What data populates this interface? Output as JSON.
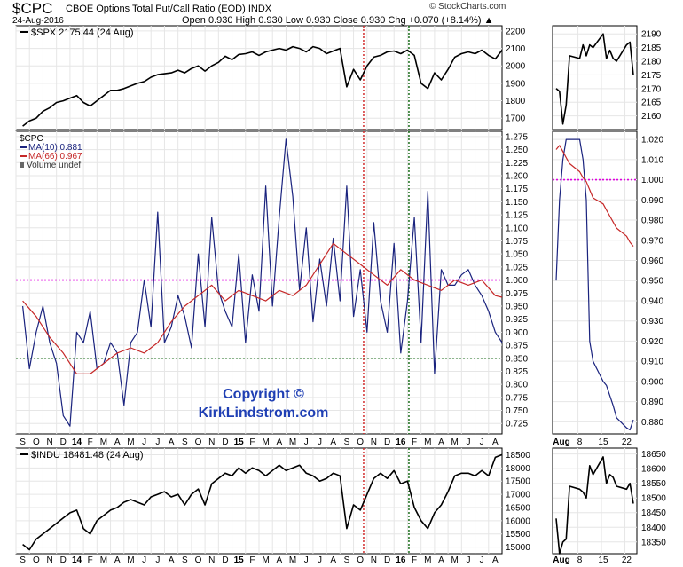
{
  "header": {
    "symbol": "$CPC",
    "subtitle": "CBOE Options Total Put/Call Ratio (EOD)  INDX",
    "date": "24-Aug-2016",
    "ohlc": "Open 0.930  High 0.930  Low 0.930  Close 0.930  Chg +0.070 (+8.14%) ▲",
    "brand": "© StockCharts.com"
  },
  "copyright": {
    "line1": "Copyright ©",
    "line2": "KirkLindstrom.com"
  },
  "colors": {
    "price": "#000000",
    "ma10": "#1a237e",
    "ma66": "#c62828",
    "ref_line": "#e000e0",
    "support_line": "#1b6e1b",
    "oct_marker": "#d32f2f",
    "feb_marker": "#1b6e1b",
    "copyright": "#1f3fb4"
  },
  "month_labels": [
    "S",
    "O",
    "N",
    "D",
    "14",
    "F",
    "M",
    "A",
    "M",
    "J",
    "J",
    "A",
    "S",
    "O",
    "N",
    "D",
    "15",
    "F",
    "M",
    "A",
    "M",
    "J",
    "J",
    "A",
    "S",
    "O",
    "N",
    "D",
    "16",
    "F",
    "M",
    "A",
    "M",
    "J",
    "J",
    "A"
  ],
  "zoom_labels": [
    "Aug",
    "8",
    "15",
    "22"
  ],
  "chart_data": [
    {
      "id": "spx",
      "type": "line",
      "legend": "$SPX 2175.44 (24 Aug)",
      "yticks": [
        1700,
        1800,
        1900,
        2000,
        2100,
        2200
      ],
      "ylim": [
        1635,
        2230
      ],
      "x_months": [
        0,
        0.5,
        1,
        1.5,
        2,
        2.5,
        3,
        3.5,
        4,
        4.5,
        5,
        5.5,
        6,
        6.5,
        7,
        7.5,
        8,
        8.5,
        9,
        9.5,
        10,
        10.5,
        11,
        11.5,
        12,
        12.5,
        13,
        13.5,
        14,
        14.5,
        15,
        15.5,
        16,
        16.5,
        17,
        17.5,
        18,
        18.5,
        19,
        19.5,
        20,
        20.5,
        21,
        21.5,
        22,
        22.5,
        23,
        23.5,
        24,
        24.5,
        25,
        25.5,
        26,
        26.5,
        27,
        27.5,
        28,
        28.5,
        29,
        29.5,
        30,
        30.5,
        31,
        31.5,
        32,
        32.5,
        33,
        33.5,
        34,
        34.5,
        35,
        35.5
      ],
      "values": [
        1655,
        1685,
        1700,
        1740,
        1760,
        1790,
        1800,
        1815,
        1830,
        1790,
        1770,
        1800,
        1830,
        1860,
        1860,
        1870,
        1885,
        1900,
        1910,
        1935,
        1950,
        1955,
        1960,
        1975,
        1960,
        1985,
        2000,
        1970,
        2000,
        2020,
        2055,
        2035,
        2065,
        2070,
        2080,
        2060,
        2080,
        2090,
        2100,
        2090,
        2110,
        2100,
        2080,
        2110,
        2100,
        2070,
        2085,
        2100,
        1880,
        1980,
        1920,
        2000,
        2050,
        2060,
        2080,
        2085,
        2070,
        2090,
        2060,
        1900,
        1870,
        1960,
        1920,
        1980,
        2050,
        2070,
        2080,
        2070,
        2090,
        2060,
        2040,
        2090
      ]
    },
    {
      "id": "spx_zoom",
      "type": "line",
      "x_days": [
        1,
        2,
        3,
        4,
        5,
        8,
        9,
        10,
        11,
        12,
        15,
        16,
        17,
        18,
        19,
        22,
        23,
        24
      ],
      "yticks": [
        2160,
        2165,
        2170,
        2175,
        2180,
        2185,
        2190
      ],
      "ylim": [
        2155,
        2193
      ],
      "values": [
        2170,
        2169,
        2157,
        2164,
        2182,
        2181,
        2186,
        2182,
        2186,
        2185,
        2190,
        2181,
        2184,
        2181,
        2180,
        2186,
        2187,
        2175
      ]
    },
    {
      "id": "cpc",
      "type": "line",
      "title": "$CPC",
      "yticks": [
        0.725,
        0.75,
        0.775,
        0.8,
        0.825,
        0.85,
        0.875,
        0.9,
        0.925,
        0.95,
        0.975,
        1.0,
        1.025,
        1.05,
        1.075,
        1.1,
        1.125,
        1.15,
        1.175,
        1.2,
        1.225,
        1.25,
        1.275
      ],
      "ylim": [
        0.705,
        1.285
      ],
      "reference_lines": [
        1.0,
        0.85
      ],
      "series": [
        {
          "name": "MA(10) 0.881",
          "x_months": [
            0,
            0.5,
            1,
            1.5,
            2,
            2.5,
            3,
            3.5,
            4,
            4.5,
            5,
            5.5,
            6,
            6.5,
            7,
            7.5,
            8,
            8.5,
            9,
            9.5,
            10,
            10.5,
            11,
            11.5,
            12,
            12.5,
            13,
            13.5,
            14,
            14.5,
            15,
            15.5,
            16,
            16.5,
            17,
            17.5,
            18,
            18.5,
            19,
            19.5,
            20,
            20.5,
            21,
            21.5,
            22,
            22.5,
            23,
            23.5,
            24,
            24.5,
            25,
            25.5,
            26,
            26.5,
            27,
            27.5,
            28,
            28.5,
            29,
            29.5,
            30,
            30.5,
            31,
            31.5,
            32,
            32.5,
            33,
            33.5,
            34,
            34.5,
            35,
            35.5
          ],
          "values": [
            0.95,
            0.83,
            0.9,
            0.95,
            0.88,
            0.84,
            0.74,
            0.72,
            0.9,
            0.88,
            0.94,
            0.83,
            0.84,
            0.88,
            0.86,
            0.76,
            0.88,
            0.9,
            1.0,
            0.91,
            1.13,
            0.88,
            0.91,
            0.97,
            0.93,
            0.87,
            1.05,
            0.91,
            1.12,
            0.98,
            0.94,
            0.91,
            1.05,
            0.88,
            1.01,
            0.94,
            1.18,
            0.95,
            1.12,
            1.27,
            1.16,
            0.98,
            1.1,
            0.92,
            1.04,
            0.95,
            1.08,
            0.96,
            1.18,
            0.93,
            1.02,
            0.9,
            1.11,
            0.96,
            0.9,
            1.07,
            0.86,
            0.96,
            1.12,
            0.88,
            1.17,
            0.82,
            1.02,
            0.99,
            0.99,
            1.01,
            1.02,
            0.99,
            0.97,
            0.94,
            0.9,
            0.88
          ]
        },
        {
          "name": "MA(66) 0.967",
          "x_months": [
            0,
            1,
            2,
            3,
            4,
            5,
            6,
            7,
            8,
            9,
            10,
            11,
            12,
            13,
            14,
            15,
            16,
            17,
            18,
            19,
            20,
            21,
            22,
            23,
            24,
            25,
            26,
            27,
            28,
            29,
            30,
            31,
            32,
            33,
            34,
            35,
            35.5
          ],
          "values": [
            0.96,
            0.93,
            0.89,
            0.86,
            0.82,
            0.82,
            0.84,
            0.86,
            0.87,
            0.86,
            0.88,
            0.92,
            0.95,
            0.97,
            0.99,
            0.96,
            0.98,
            0.97,
            0.96,
            0.98,
            0.97,
            0.99,
            1.03,
            1.07,
            1.05,
            1.03,
            1.01,
            0.99,
            1.02,
            1.0,
            0.99,
            0.98,
            1.0,
            0.99,
            1.0,
            0.97,
            0.967
          ]
        }
      ],
      "volume": "Volume undef"
    },
    {
      "id": "cpc_zoom",
      "type": "line",
      "x_days": [
        1,
        2,
        3,
        4,
        5,
        8,
        9,
        10,
        11,
        12,
        15,
        16,
        17,
        18,
        19,
        22,
        23,
        24
      ],
      "yticks": [
        0.88,
        0.89,
        0.9,
        0.91,
        0.92,
        0.93,
        0.94,
        0.95,
        0.96,
        0.97,
        0.98,
        0.99,
        1.0,
        1.01,
        1.02
      ],
      "ylim": [
        0.874,
        1.024
      ],
      "reference_lines": [
        1.0
      ],
      "series": [
        {
          "name": "MA(10)",
          "values": [
            0.95,
            0.99,
            1.01,
            1.02,
            1.02,
            1.02,
            1.01,
            0.99,
            0.92,
            0.91,
            0.9,
            0.898,
            0.893,
            0.888,
            0.882,
            0.877,
            0.876,
            0.881
          ]
        },
        {
          "name": "MA(66)",
          "values": [
            1.015,
            1.017,
            1.014,
            1.011,
            1.008,
            1.004,
            1.001,
            0.999,
            0.995,
            0.991,
            0.988,
            0.985,
            0.982,
            0.979,
            0.976,
            0.972,
            0.969,
            0.967
          ]
        }
      ]
    },
    {
      "id": "indu",
      "type": "line",
      "legend": "$INDU 18481.48 (24 Aug)",
      "yticks": [
        15000,
        15500,
        16000,
        16500,
        17000,
        17500,
        18000,
        18500
      ],
      "ylim": [
        14750,
        18750
      ],
      "x_months": [
        0,
        0.5,
        1,
        1.5,
        2,
        2.5,
        3,
        3.5,
        4,
        4.5,
        5,
        5.5,
        6,
        6.5,
        7,
        7.5,
        8,
        8.5,
        9,
        9.5,
        10,
        10.5,
        11,
        11.5,
        12,
        12.5,
        13,
        13.5,
        14,
        14.5,
        15,
        15.5,
        16,
        16.5,
        17,
        17.5,
        18,
        18.5,
        19,
        19.5,
        20,
        20.5,
        21,
        21.5,
        22,
        22.5,
        23,
        23.5,
        24,
        24.5,
        25,
        25.5,
        26,
        26.5,
        27,
        27.5,
        28,
        28.5,
        29,
        29.5,
        30,
        30.5,
        31,
        31.5,
        32,
        32.5,
        33,
        33.5,
        34,
        34.5,
        35,
        35.5
      ],
      "values": [
        15100,
        14900,
        15300,
        15500,
        15700,
        15900,
        16100,
        16300,
        16400,
        15700,
        15500,
        16000,
        16200,
        16400,
        16500,
        16700,
        16800,
        16700,
        16600,
        16900,
        17000,
        17100,
        16900,
        17000,
        16600,
        17000,
        17200,
        16600,
        17400,
        17600,
        17800,
        17700,
        18000,
        17800,
        18000,
        17900,
        17700,
        17900,
        18100,
        17900,
        18000,
        18100,
        17800,
        17700,
        17500,
        17600,
        17800,
        17700,
        15700,
        16600,
        16400,
        17000,
        17600,
        17800,
        17600,
        17900,
        17400,
        17500,
        16500,
        16000,
        15700,
        16300,
        16600,
        17100,
        17700,
        17800,
        17800,
        17700,
        17900,
        17700,
        18400,
        18500
      ]
    },
    {
      "id": "indu_zoom",
      "type": "line",
      "x_days": [
        1,
        2,
        3,
        4,
        5,
        8,
        9,
        10,
        11,
        12,
        15,
        16,
        17,
        18,
        19,
        22,
        23,
        24
      ],
      "yticks": [
        18350,
        18400,
        18450,
        18500,
        18550,
        18600,
        18650
      ],
      "ylim": [
        18310,
        18670
      ],
      "values": [
        18430,
        18310,
        18350,
        18360,
        18540,
        18530,
        18520,
        18500,
        18610,
        18580,
        18640,
        18550,
        18580,
        18570,
        18540,
        18530,
        18550,
        18481
      ]
    }
  ]
}
